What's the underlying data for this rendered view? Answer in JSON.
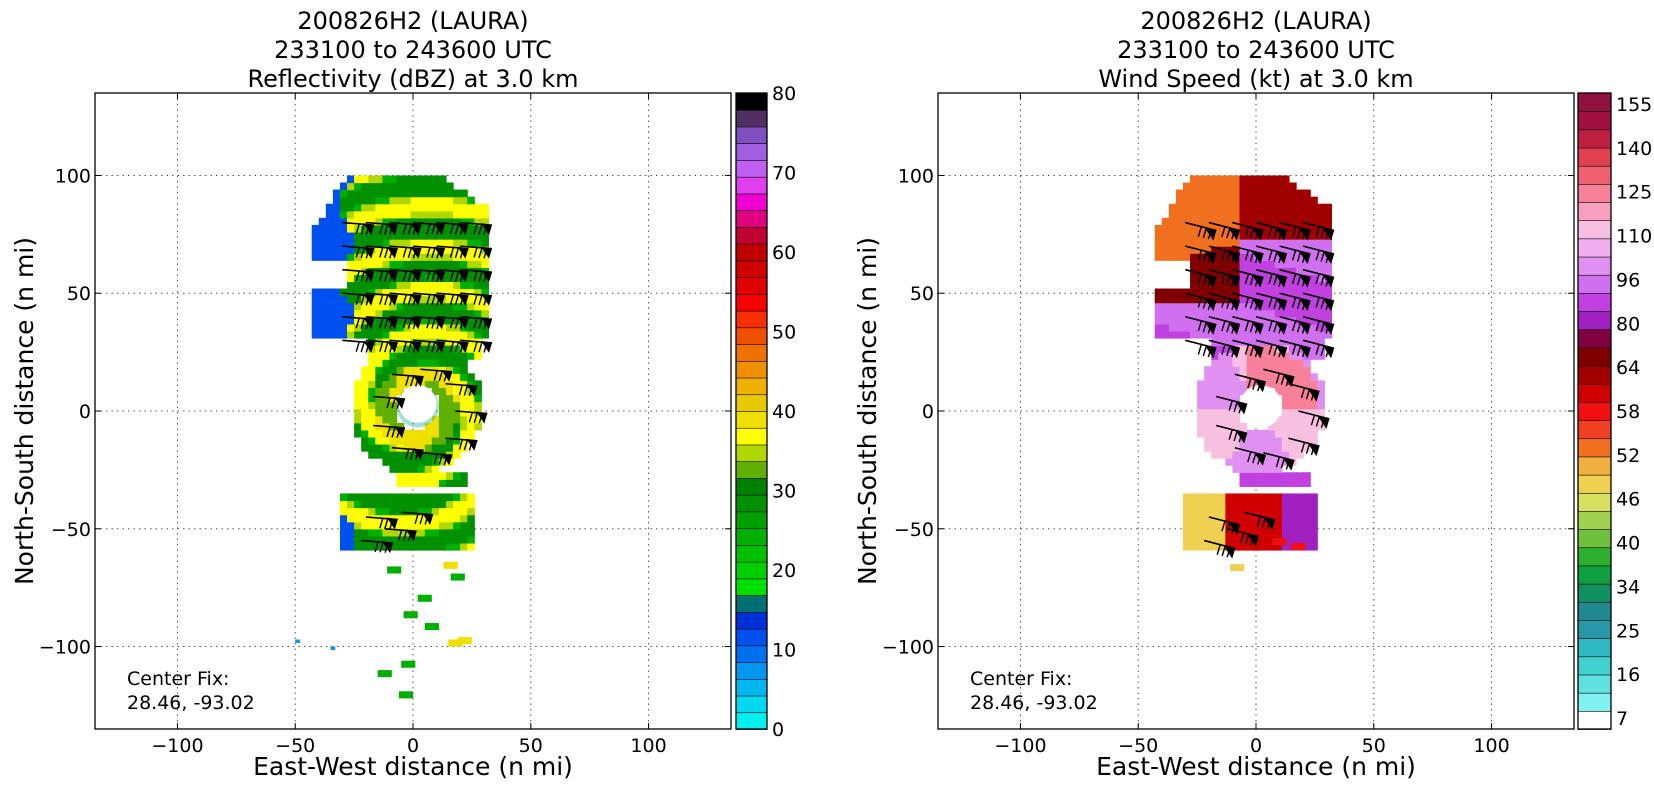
{
  "chart_data": [
    {
      "type": "heatmap",
      "title_lines": [
        "200826H2 (LAURA)",
        "233100 to 243600 UTC",
        "Reflectivity (dBZ) at 3.0 km"
      ],
      "xlabel": "East-West distance (n mi)",
      "ylabel": "North-South distance (n mi)",
      "xlim": [
        -135,
        135
      ],
      "ylim": [
        -135,
        135
      ],
      "x_ticks": [
        -100,
        -50,
        0,
        50,
        100
      ],
      "y_ticks": [
        -100,
        -50,
        0,
        50,
        100
      ],
      "grid": true,
      "annotation": [
        "Center Fix:",
        "28.46, -93.02"
      ],
      "colorbar": {
        "min": 0,
        "max": 80,
        "tick_values": [
          0,
          10,
          20,
          30,
          40,
          50,
          60,
          70,
          80
        ],
        "tick_labels": [
          "0",
          "10",
          "20",
          "30",
          "40",
          "50",
          "60",
          "70",
          "80"
        ],
        "colors": [
          "#00f0f0",
          "#00d8f0",
          "#00b8f0",
          "#0098f0",
          "#0070f0",
          "#0050f0",
          "#0030d8",
          "#007070",
          "#00e000",
          "#00d000",
          "#00c000",
          "#00b000",
          "#00a000",
          "#009000",
          "#008000",
          "#60b000",
          "#b0d800",
          "#ffff00",
          "#f0e000",
          "#e8c800",
          "#f0b000",
          "#f09000",
          "#f07000",
          "#f05000",
          "#f83000",
          "#f80000",
          "#e00000",
          "#d00000",
          "#c00000",
          "#c00030",
          "#e00080",
          "#f000d0",
          "#e040f0",
          "#c060f0",
          "#a060e0",
          "#8050c0",
          "#503060",
          "#000000"
        ]
      },
      "storm": {
        "center": [
          0,
          0
        ],
        "eye_radius": 9,
        "eyewall_outer_radius": 26
      }
    },
    {
      "type": "heatmap",
      "title_lines": [
        "200826H2 (LAURA)",
        "233100 to 243600 UTC",
        "Wind Speed (kt) at 3.0 km"
      ],
      "xlabel": "East-West distance (n mi)",
      "ylabel": "North-South distance (n mi)",
      "xlim": [
        -135,
        135
      ],
      "ylim": [
        -135,
        135
      ],
      "x_ticks": [
        -100,
        -50,
        0,
        50,
        100
      ],
      "y_ticks": [
        -100,
        -50,
        0,
        50,
        100
      ],
      "grid": true,
      "annotation": [
        "Center Fix:",
        "28.46, -93.02"
      ],
      "colorbar": {
        "n_bins": 29,
        "tick_labels": [
          "7",
          "16",
          "25",
          "34",
          "40",
          "46",
          "52",
          "58",
          "64",
          "80",
          "96",
          "110",
          "125",
          "140",
          "155"
        ],
        "tick_bins": [
          0,
          2,
          4,
          6,
          8,
          10,
          12,
          14,
          16,
          18,
          20,
          22,
          24,
          26,
          28
        ],
        "colors": [
          "#ffffff",
          "#80f0f0",
          "#60e0e0",
          "#40d0d0",
          "#30b8c0",
          "#2898a8",
          "#208890",
          "#109060",
          "#10a040",
          "#30b030",
          "#70c040",
          "#a0d050",
          "#d8e060",
          "#f0d050",
          "#f0b040",
          "#f07020",
          "#f04020",
          "#f01010",
          "#d00000",
          "#a00000",
          "#800000",
          "#800040",
          "#a020c0",
          "#c040e0",
          "#d070f0",
          "#e090f0",
          "#f0b0f0",
          "#f8c0e0",
          "#f8a0c0",
          "#f88098",
          "#f06070",
          "#e04050",
          "#c02040",
          "#a01040",
          "#901040"
        ]
      },
      "storm": {
        "center": [
          0,
          0
        ],
        "eye_radius": 9,
        "eyewall_outer_radius": 26
      }
    }
  ]
}
